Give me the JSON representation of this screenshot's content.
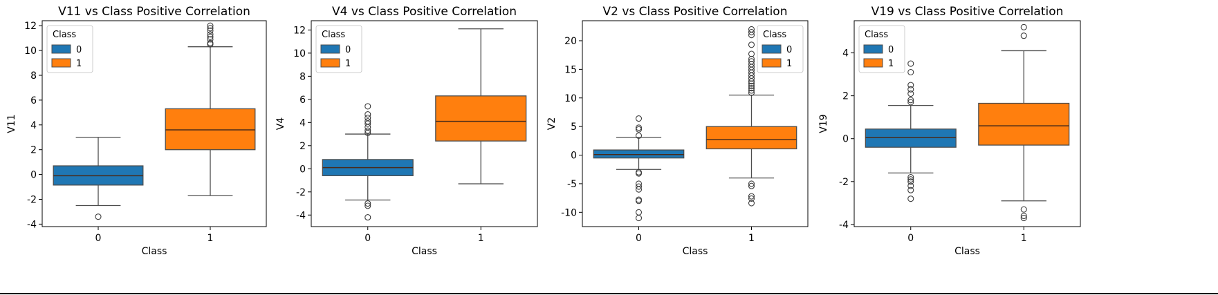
{
  "colors": {
    "class0": "#1f77b4",
    "class1": "#ff7f0e",
    "median": "#4a2b1a"
  },
  "chart_data": [
    {
      "type": "box",
      "title": "V11 vs Class Positive Correlation",
      "xlabel": "Class",
      "ylabel": "V11",
      "categories": [
        "0",
        "1"
      ],
      "ylim": [
        -4.2,
        12.4
      ],
      "yticks": [
        -4,
        -2,
        0,
        2,
        4,
        6,
        8,
        10,
        12
      ],
      "legend": {
        "title": "Class",
        "labels": [
          "0",
          "1"
        ],
        "placement": "top-left"
      },
      "boxes": [
        {
          "category": "0",
          "whislo": -2.5,
          "q1": -0.85,
          "med": -0.1,
          "q3": 0.7,
          "whishi": 3.0,
          "fliers": [
            -3.4
          ]
        },
        {
          "category": "1",
          "whislo": -1.7,
          "q1": 2.0,
          "med": 3.6,
          "q3": 5.3,
          "whishi": 10.3,
          "fliers": [
            10.5,
            10.6,
            10.9,
            11.1,
            11.3,
            11.6,
            11.8,
            12.0
          ]
        }
      ]
    },
    {
      "type": "box",
      "title": "V4 vs Class Positive Correlation",
      "xlabel": "Class",
      "ylabel": "V4",
      "categories": [
        "0",
        "1"
      ],
      "ylim": [
        -5.0,
        12.8
      ],
      "yticks": [
        -4,
        -2,
        0,
        2,
        4,
        6,
        8,
        10,
        12
      ],
      "legend": {
        "title": "Class",
        "labels": [
          "0",
          "1"
        ],
        "placement": "top-left"
      },
      "boxes": [
        {
          "category": "0",
          "whislo": -2.7,
          "q1": -0.6,
          "med": 0.1,
          "q3": 0.8,
          "whishi": 3.0,
          "fliers": [
            -4.2,
            -3.2,
            -3.0,
            3.1,
            3.3,
            3.6,
            3.9,
            4.1,
            4.4,
            4.7,
            5.4
          ]
        },
        {
          "category": "1",
          "whislo": -1.3,
          "q1": 2.4,
          "med": 4.1,
          "q3": 6.3,
          "whishi": 12.1,
          "fliers": []
        }
      ]
    },
    {
      "type": "box",
      "title": "V2  vs Class Positive Correlation",
      "xlabel": "Class",
      "ylabel": "V2",
      "categories": [
        "0",
        "1"
      ],
      "ylim": [
        -12.5,
        23.5
      ],
      "yticks": [
        -10,
        -5,
        0,
        5,
        10,
        15,
        20
      ],
      "legend": {
        "title": "Class",
        "labels": [
          "0",
          "1"
        ],
        "placement": "top-right"
      },
      "boxes": [
        {
          "category": "0",
          "whislo": -2.5,
          "q1": -0.5,
          "med": 0.1,
          "q3": 0.9,
          "whishi": 3.1,
          "fliers": [
            -11.0,
            -10.0,
            -8.0,
            -7.8,
            -6.0,
            -5.5,
            -5.0,
            -3.2,
            -3.0,
            3.4,
            4.5,
            4.8,
            6.4
          ]
        },
        {
          "category": "1",
          "whislo": -4.0,
          "q1": 1.1,
          "med": 2.7,
          "q3": 5.0,
          "whishi": 10.5,
          "fliers": [
            -8.4,
            -7.6,
            -7.2,
            -5.4,
            -5.0,
            10.9,
            11.3,
            11.7,
            12.1,
            12.5,
            12.9,
            13.4,
            13.9,
            14.4,
            14.9,
            15.4,
            15.9,
            16.4,
            16.8,
            17.7,
            19.3,
            21.0,
            21.5,
            22.0
          ]
        }
      ]
    },
    {
      "type": "box",
      "title": "V19 vs Class Positive Correlation",
      "xlabel": "Class",
      "ylabel": "V19",
      "categories": [
        "0",
        "1"
      ],
      "ylim": [
        -4.1,
        5.5
      ],
      "yticks": [
        -4,
        -2,
        0,
        2,
        4
      ],
      "legend": {
        "title": "Class",
        "labels": [
          "0",
          "1"
        ],
        "placement": "top-left"
      },
      "boxes": [
        {
          "category": "0",
          "whislo": -1.6,
          "q1": -0.4,
          "med": 0.05,
          "q3": 0.45,
          "whishi": 1.55,
          "fliers": [
            -2.8,
            -2.4,
            -2.2,
            -2.0,
            -1.9,
            -1.8,
            1.7,
            1.8,
            2.1,
            2.3,
            2.5,
            3.1,
            3.5
          ]
        },
        {
          "category": "1",
          "whislo": -2.9,
          "q1": -0.3,
          "med": 0.6,
          "q3": 1.65,
          "whishi": 4.1,
          "fliers": [
            -3.7,
            -3.6,
            -3.3,
            4.8,
            5.2
          ]
        }
      ]
    }
  ]
}
